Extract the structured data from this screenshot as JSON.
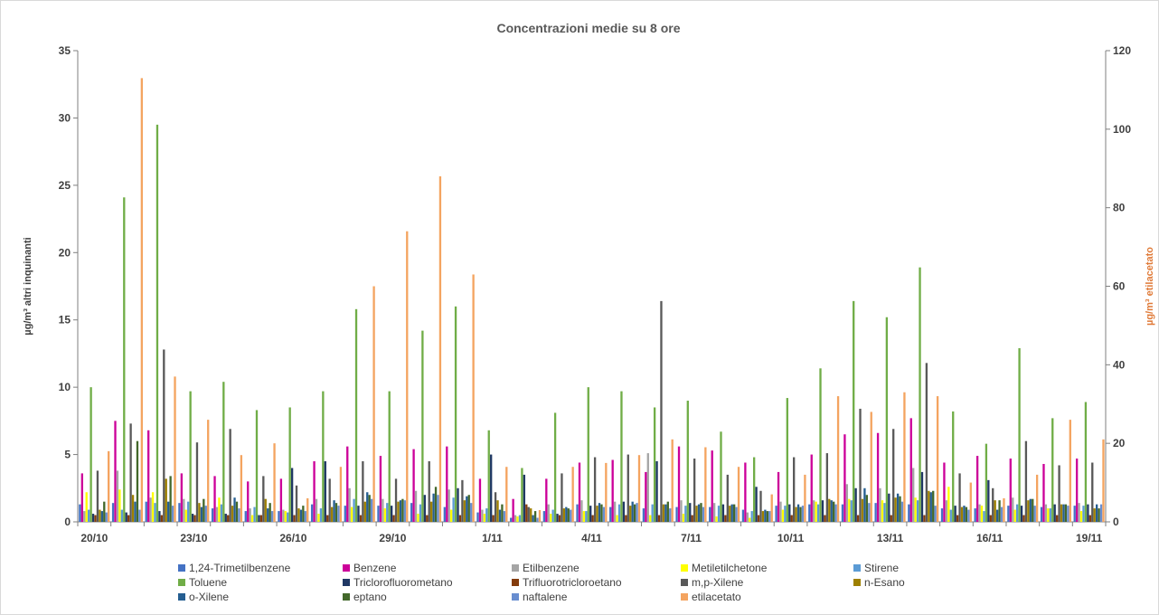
{
  "chart_data": {
    "type": "bar",
    "title": "Concentrazioni medie su 8 ore",
    "ylabel": "µg/m³ altri inquinanti",
    "y2label": "µg/m³ etilacetato",
    "ylim": [
      0,
      35
    ],
    "y2lim": [
      0,
      120
    ],
    "yticks": [
      "0",
      "5",
      "10",
      "15",
      "20",
      "25",
      "30",
      "35"
    ],
    "y2ticks": [
      "0",
      "20",
      "40",
      "60",
      "80",
      "100",
      "120"
    ],
    "categories": [
      "20/10",
      "21/10",
      "22/10",
      "23/10",
      "24/10",
      "25/10",
      "26/10",
      "27/10",
      "28/10",
      "29/10",
      "30/10",
      "31/10",
      "1/11",
      "2/11",
      "3/11",
      "4/11",
      "5/11",
      "6/11",
      "7/11",
      "8/11",
      "9/11",
      "10/11",
      "11/11",
      "12/11",
      "13/11",
      "14/11",
      "15/11",
      "16/11",
      "17/11",
      "18/11",
      "19/11"
    ],
    "xtick_labels": [
      "20/10",
      "23/10",
      "26/10",
      "29/10",
      "1/11",
      "4/11",
      "7/11",
      "10/11",
      "13/11",
      "16/11",
      "19/11"
    ],
    "legend_position": "bottom",
    "series": [
      {
        "name": "1,24-Trimetilbenzene",
        "color": "#4472c4",
        "axis": "left",
        "values": [
          1.3,
          1.4,
          1.5,
          1.4,
          1.0,
          0.8,
          0.8,
          1.3,
          1.2,
          1.2,
          1.4,
          1.1,
          0.7,
          0.3,
          0.8,
          1.3,
          1.1,
          1.0,
          1.1,
          1.1,
          0.9,
          1.2,
          1.3,
          1.3,
          1.4,
          1.3,
          1.0,
          1.0,
          1.2,
          1.1,
          1.2
        ]
      },
      {
        "name": "Benzene",
        "color": "#cc0099",
        "axis": "left",
        "values": [
          3.6,
          7.5,
          6.8,
          3.6,
          3.4,
          3.0,
          3.2,
          4.5,
          5.6,
          4.9,
          5.4,
          5.6,
          3.2,
          1.7,
          3.2,
          4.4,
          4.6,
          3.7,
          5.6,
          5.3,
          4.4,
          3.7,
          5.0,
          6.5,
          6.6,
          7.7,
          4.4,
          4.9,
          4.7,
          4.3,
          4.7
        ]
      },
      {
        "name": "Etilbenzene",
        "color": "#a5a5a5",
        "axis": "left",
        "values": [
          0.8,
          3.8,
          1.8,
          1.7,
          1.1,
          1.0,
          0.9,
          1.7,
          2.5,
          1.7,
          2.3,
          2.4,
          0.9,
          0.5,
          1.3,
          1.6,
          1.5,
          5.1,
          1.6,
          1.4,
          0.7,
          1.5,
          1.6,
          2.8,
          2.5,
          4.0,
          1.6,
          1.3,
          1.8,
          1.3,
          1.4
        ]
      },
      {
        "name": "Metiletilchetone",
        "color": "#ffff00",
        "axis": "left",
        "values": [
          2.2,
          2.4,
          2.2,
          0.9,
          1.8,
          0.5,
          0.8,
          0.6,
          1.1,
          1.0,
          0.6,
          0.9,
          0.6,
          0.4,
          0.6,
          0.8,
          0.5,
          0.5,
          0.6,
          0.4,
          0.3,
          0.9,
          1.5,
          1.7,
          1.6,
          1.8,
          2.6,
          1.2,
          0.9,
          1.0,
          0.8
        ]
      },
      {
        "name": "Stirene",
        "color": "#5b9bd5",
        "axis": "left",
        "values": [
          0.9,
          0.9,
          1.4,
          1.5,
          1.3,
          1.1,
          0.7,
          1.0,
          1.7,
          1.4,
          1.3,
          1.8,
          1.0,
          0.5,
          0.9,
          0.8,
          1.3,
          1.3,
          1.2,
          1.2,
          0.8,
          1.2,
          1.3,
          1.6,
          1.4,
          1.6,
          0.9,
          0.8,
          1.3,
          1.0,
          1.2
        ]
      },
      {
        "name": "Toluene",
        "color": "#70ad47",
        "axis": "left",
        "values": [
          10.0,
          24.1,
          29.5,
          9.7,
          10.4,
          8.3,
          8.5,
          9.7,
          15.8,
          9.7,
          14.2,
          16.0,
          6.8,
          4.0,
          8.1,
          10.0,
          9.7,
          8.5,
          9.0,
          6.7,
          4.8,
          9.2,
          11.4,
          16.4,
          15.2,
          18.9,
          8.2,
          5.8,
          12.9,
          7.7,
          8.9
        ]
      },
      {
        "name": "Triclorofluorometano",
        "color": "#203864",
        "axis": "left",
        "values": [
          0.6,
          0.7,
          0.8,
          0.6,
          0.6,
          0.5,
          4.0,
          4.5,
          1.2,
          1.2,
          2.0,
          2.5,
          5.0,
          3.5,
          0.6,
          1.2,
          1.5,
          4.5,
          1.4,
          1.3,
          2.6,
          1.3,
          1.6,
          2.5,
          2.1,
          3.7,
          1.2,
          3.1,
          1.2,
          1.3,
          1.3
        ]
      },
      {
        "name": "Trifluorotricloroetano",
        "color": "#843c0c",
        "axis": "left",
        "values": [
          0.5,
          0.5,
          0.5,
          0.5,
          0.5,
          0.5,
          0.5,
          0.5,
          0.5,
          0.5,
          0.5,
          0.5,
          0.5,
          1.3,
          0.5,
          0.5,
          0.5,
          0.5,
          0.5,
          0.5,
          0.5,
          0.5,
          0.5,
          0.5,
          0.5,
          0.5,
          0.5,
          0.5,
          0.5,
          0.5,
          0.5
        ]
      },
      {
        "name": "m,p-Xilene",
        "color": "#595959",
        "axis": "left",
        "values": [
          3.8,
          7.3,
          12.8,
          5.9,
          6.9,
          3.4,
          2.7,
          3.2,
          4.5,
          3.2,
          4.5,
          3.1,
          2.2,
          1.1,
          3.6,
          4.8,
          5.0,
          16.4,
          4.7,
          3.5,
          2.3,
          4.8,
          5.1,
          8.4,
          6.9,
          11.8,
          3.6,
          2.5,
          6.0,
          4.2,
          4.4
        ]
      },
      {
        "name": "n-Esano",
        "color": "#9e8000",
        "axis": "left",
        "values": [
          0.9,
          2.0,
          3.2,
          1.4,
          1.2,
          1.7,
          1.0,
          1.1,
          1.5,
          1.5,
          1.5,
          1.6,
          1.6,
          1.0,
          1.0,
          1.2,
          1.2,
          1.3,
          1.2,
          1.2,
          0.8,
          1.1,
          1.7,
          1.7,
          1.8,
          2.3,
          1.1,
          1.6,
          1.6,
          1.3,
          1.0
        ]
      },
      {
        "name": "o-Xilene",
        "color": "#255e91",
        "axis": "left",
        "values": [
          0.8,
          1.5,
          1.5,
          1.1,
          1.8,
          1.0,
          0.9,
          1.6,
          2.2,
          1.6,
          2.1,
          1.9,
          0.9,
          0.5,
          1.1,
          1.4,
          1.5,
          1.3,
          1.3,
          1.3,
          0.9,
          1.3,
          1.6,
          2.5,
          2.1,
          2.2,
          1.2,
          0.9,
          1.7,
          1.3,
          1.3
        ]
      },
      {
        "name": "eptano",
        "color": "#43682b",
        "axis": "left",
        "values": [
          1.5,
          6.0,
          3.4,
          1.7,
          1.5,
          1.4,
          1.2,
          1.4,
          2.0,
          1.7,
          2.6,
          2.0,
          1.3,
          0.8,
          1.0,
          1.3,
          1.3,
          1.5,
          1.4,
          1.3,
          0.8,
          1.1,
          1.5,
          2.0,
          1.9,
          2.3,
          1.1,
          1.6,
          1.7,
          1.3,
          1.0
        ]
      },
      {
        "name": "naftalene",
        "color": "#698ed0",
        "axis": "left",
        "values": [
          0.7,
          0.9,
          1.2,
          1.2,
          1.0,
          0.8,
          0.8,
          1.2,
          1.7,
          1.6,
          2.0,
          1.4,
          0.8,
          0.3,
          0.9,
          1.1,
          1.4,
          1.0,
          1.1,
          1.1,
          0.8,
          1.2,
          1.3,
          1.4,
          1.5,
          1.2,
          0.9,
          1.1,
          1.2,
          1.2,
          1.3
        ]
      },
      {
        "name": "etilacetato",
        "color": "#f4a460",
        "axis": "right",
        "values": [
          18,
          113,
          37,
          26,
          17,
          20,
          6,
          14,
          60,
          74,
          88,
          63,
          14,
          3,
          14,
          15,
          17,
          21,
          19,
          14,
          7,
          12,
          32,
          28,
          33,
          32,
          10,
          6,
          12,
          26,
          21
        ]
      }
    ]
  }
}
